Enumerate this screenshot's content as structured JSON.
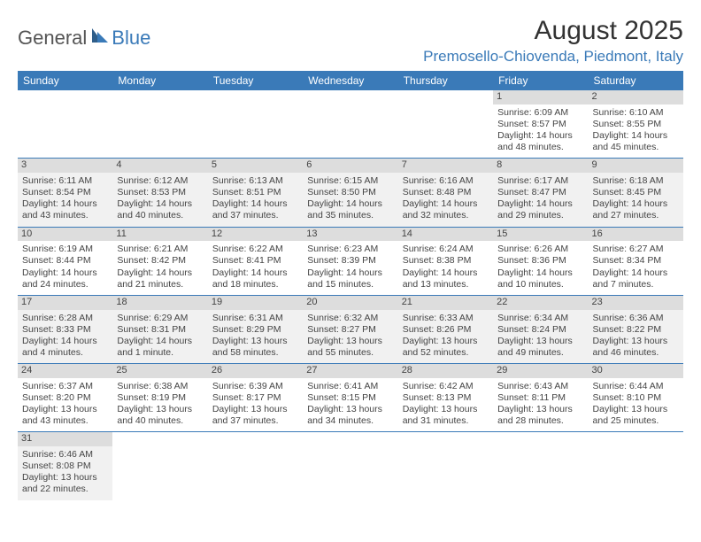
{
  "logo": {
    "text1": "General",
    "text2": "Blue"
  },
  "title": "August 2025",
  "location": "Premosello-Chiovenda, Piedmont, Italy",
  "colors": {
    "accent": "#3a7ab8",
    "shade": "#dddddd",
    "bg": "#ffffff"
  },
  "day_headers": [
    "Sunday",
    "Monday",
    "Tuesday",
    "Wednesday",
    "Thursday",
    "Friday",
    "Saturday"
  ],
  "weeks": [
    {
      "shade": false,
      "days": [
        null,
        null,
        null,
        null,
        null,
        {
          "n": "1",
          "sunrise": "Sunrise: 6:09 AM",
          "sunset": "Sunset: 8:57 PM",
          "daylight": "Daylight: 14 hours and 48 minutes."
        },
        {
          "n": "2",
          "sunrise": "Sunrise: 6:10 AM",
          "sunset": "Sunset: 8:55 PM",
          "daylight": "Daylight: 14 hours and 45 minutes."
        }
      ]
    },
    {
      "shade": true,
      "days": [
        {
          "n": "3",
          "sunrise": "Sunrise: 6:11 AM",
          "sunset": "Sunset: 8:54 PM",
          "daylight": "Daylight: 14 hours and 43 minutes."
        },
        {
          "n": "4",
          "sunrise": "Sunrise: 6:12 AM",
          "sunset": "Sunset: 8:53 PM",
          "daylight": "Daylight: 14 hours and 40 minutes."
        },
        {
          "n": "5",
          "sunrise": "Sunrise: 6:13 AM",
          "sunset": "Sunset: 8:51 PM",
          "daylight": "Daylight: 14 hours and 37 minutes."
        },
        {
          "n": "6",
          "sunrise": "Sunrise: 6:15 AM",
          "sunset": "Sunset: 8:50 PM",
          "daylight": "Daylight: 14 hours and 35 minutes."
        },
        {
          "n": "7",
          "sunrise": "Sunrise: 6:16 AM",
          "sunset": "Sunset: 8:48 PM",
          "daylight": "Daylight: 14 hours and 32 minutes."
        },
        {
          "n": "8",
          "sunrise": "Sunrise: 6:17 AM",
          "sunset": "Sunset: 8:47 PM",
          "daylight": "Daylight: 14 hours and 29 minutes."
        },
        {
          "n": "9",
          "sunrise": "Sunrise: 6:18 AM",
          "sunset": "Sunset: 8:45 PM",
          "daylight": "Daylight: 14 hours and 27 minutes."
        }
      ]
    },
    {
      "shade": false,
      "days": [
        {
          "n": "10",
          "sunrise": "Sunrise: 6:19 AM",
          "sunset": "Sunset: 8:44 PM",
          "daylight": "Daylight: 14 hours and 24 minutes."
        },
        {
          "n": "11",
          "sunrise": "Sunrise: 6:21 AM",
          "sunset": "Sunset: 8:42 PM",
          "daylight": "Daylight: 14 hours and 21 minutes."
        },
        {
          "n": "12",
          "sunrise": "Sunrise: 6:22 AM",
          "sunset": "Sunset: 8:41 PM",
          "daylight": "Daylight: 14 hours and 18 minutes."
        },
        {
          "n": "13",
          "sunrise": "Sunrise: 6:23 AM",
          "sunset": "Sunset: 8:39 PM",
          "daylight": "Daylight: 14 hours and 15 minutes."
        },
        {
          "n": "14",
          "sunrise": "Sunrise: 6:24 AM",
          "sunset": "Sunset: 8:38 PM",
          "daylight": "Daylight: 14 hours and 13 minutes."
        },
        {
          "n": "15",
          "sunrise": "Sunrise: 6:26 AM",
          "sunset": "Sunset: 8:36 PM",
          "daylight": "Daylight: 14 hours and 10 minutes."
        },
        {
          "n": "16",
          "sunrise": "Sunrise: 6:27 AM",
          "sunset": "Sunset: 8:34 PM",
          "daylight": "Daylight: 14 hours and 7 minutes."
        }
      ]
    },
    {
      "shade": true,
      "days": [
        {
          "n": "17",
          "sunrise": "Sunrise: 6:28 AM",
          "sunset": "Sunset: 8:33 PM",
          "daylight": "Daylight: 14 hours and 4 minutes."
        },
        {
          "n": "18",
          "sunrise": "Sunrise: 6:29 AM",
          "sunset": "Sunset: 8:31 PM",
          "daylight": "Daylight: 14 hours and 1 minute."
        },
        {
          "n": "19",
          "sunrise": "Sunrise: 6:31 AM",
          "sunset": "Sunset: 8:29 PM",
          "daylight": "Daylight: 13 hours and 58 minutes."
        },
        {
          "n": "20",
          "sunrise": "Sunrise: 6:32 AM",
          "sunset": "Sunset: 8:27 PM",
          "daylight": "Daylight: 13 hours and 55 minutes."
        },
        {
          "n": "21",
          "sunrise": "Sunrise: 6:33 AM",
          "sunset": "Sunset: 8:26 PM",
          "daylight": "Daylight: 13 hours and 52 minutes."
        },
        {
          "n": "22",
          "sunrise": "Sunrise: 6:34 AM",
          "sunset": "Sunset: 8:24 PM",
          "daylight": "Daylight: 13 hours and 49 minutes."
        },
        {
          "n": "23",
          "sunrise": "Sunrise: 6:36 AM",
          "sunset": "Sunset: 8:22 PM",
          "daylight": "Daylight: 13 hours and 46 minutes."
        }
      ]
    },
    {
      "shade": false,
      "days": [
        {
          "n": "24",
          "sunrise": "Sunrise: 6:37 AM",
          "sunset": "Sunset: 8:20 PM",
          "daylight": "Daylight: 13 hours and 43 minutes."
        },
        {
          "n": "25",
          "sunrise": "Sunrise: 6:38 AM",
          "sunset": "Sunset: 8:19 PM",
          "daylight": "Daylight: 13 hours and 40 minutes."
        },
        {
          "n": "26",
          "sunrise": "Sunrise: 6:39 AM",
          "sunset": "Sunset: 8:17 PM",
          "daylight": "Daylight: 13 hours and 37 minutes."
        },
        {
          "n": "27",
          "sunrise": "Sunrise: 6:41 AM",
          "sunset": "Sunset: 8:15 PM",
          "daylight": "Daylight: 13 hours and 34 minutes."
        },
        {
          "n": "28",
          "sunrise": "Sunrise: 6:42 AM",
          "sunset": "Sunset: 8:13 PM",
          "daylight": "Daylight: 13 hours and 31 minutes."
        },
        {
          "n": "29",
          "sunrise": "Sunrise: 6:43 AM",
          "sunset": "Sunset: 8:11 PM",
          "daylight": "Daylight: 13 hours and 28 minutes."
        },
        {
          "n": "30",
          "sunrise": "Sunrise: 6:44 AM",
          "sunset": "Sunset: 8:10 PM",
          "daylight": "Daylight: 13 hours and 25 minutes."
        }
      ]
    },
    {
      "shade": true,
      "last": true,
      "days": [
        {
          "n": "31",
          "sunrise": "Sunrise: 6:46 AM",
          "sunset": "Sunset: 8:08 PM",
          "daylight": "Daylight: 13 hours and 22 minutes."
        },
        null,
        null,
        null,
        null,
        null,
        null
      ]
    }
  ]
}
